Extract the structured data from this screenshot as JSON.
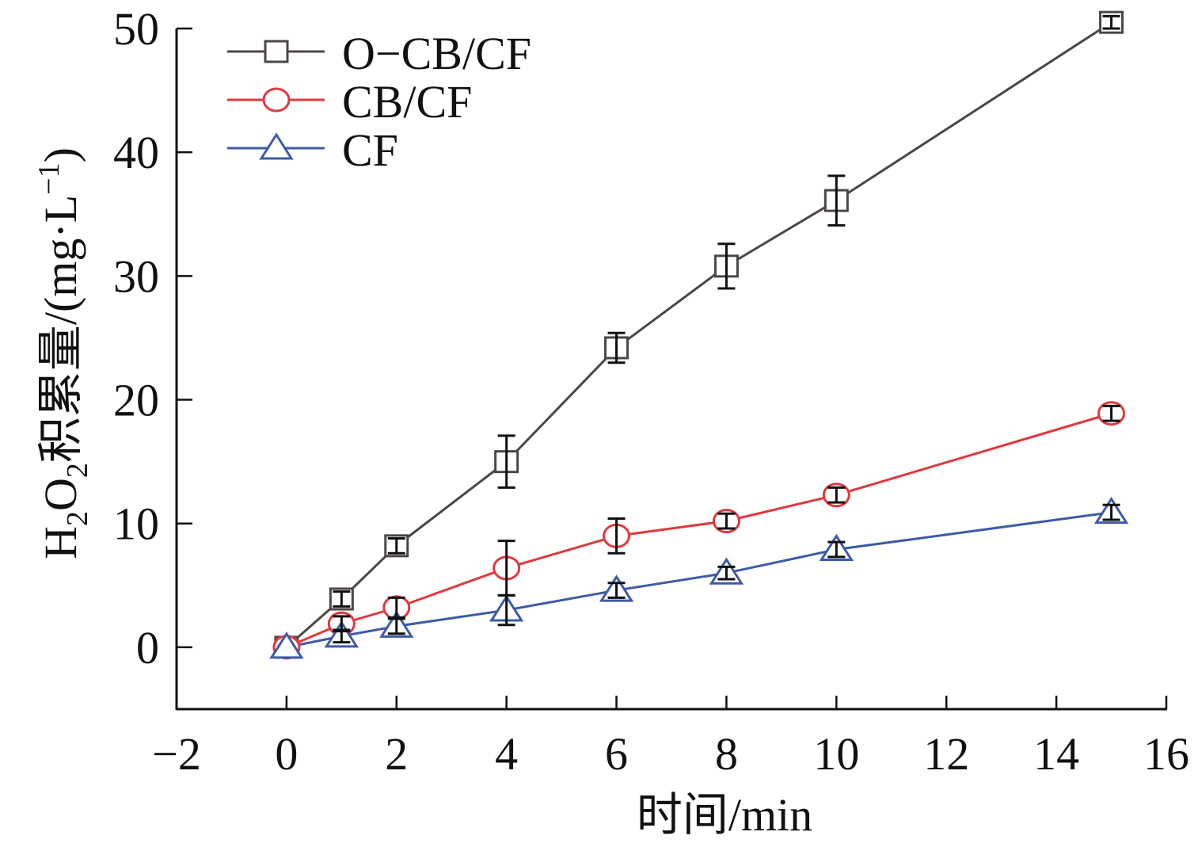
{
  "chart_data": {
    "type": "line",
    "title": "",
    "xlabel": "时间/min",
    "ylabel_parts": {
      "pre": "H",
      "sub1": "2",
      "mid": "O",
      "sub2": "2",
      "text": "积累量/(mg·L",
      "sup": "−1",
      "post": ")"
    },
    "ylabel": "H2O2积累量/(mg·L−1)",
    "xlim": [
      -2,
      16
    ],
    "ylim": [
      -5,
      50
    ],
    "xticks": [
      -2,
      0,
      2,
      4,
      6,
      8,
      10,
      12,
      14,
      16
    ],
    "xtick_labels": [
      "−2",
      "0",
      "2",
      "4",
      "6",
      "8",
      "10",
      "12",
      "14",
      "16"
    ],
    "yticks": [
      0,
      10,
      20,
      30,
      40,
      50
    ],
    "ytick_labels": [
      "0",
      "10",
      "20",
      "30",
      "40",
      "50"
    ],
    "grid": false,
    "legend_position": "top-left",
    "x": [
      0,
      1,
      2,
      4,
      6,
      8,
      10,
      15
    ],
    "series": [
      {
        "name": "O−CB/CF",
        "marker": "square",
        "color": "#4d4646",
        "values": [
          0,
          3.9,
          8.2,
          15.0,
          24.2,
          30.8,
          36.1,
          50.5
        ],
        "errors": [
          0.3,
          0.6,
          0.6,
          2.1,
          1.2,
          1.8,
          2.0,
          0.5
        ]
      },
      {
        "name": "CB/CF",
        "marker": "circle",
        "color": "#e0393e",
        "values": [
          0,
          1.9,
          3.2,
          6.4,
          9.0,
          10.2,
          12.3,
          18.9
        ],
        "errors": [
          0.3,
          0.6,
          0.8,
          2.2,
          1.4,
          0.6,
          0.6,
          0.6
        ]
      },
      {
        "name": "CF",
        "marker": "triangle",
        "color": "#3e5ba6",
        "values": [
          0,
          0.9,
          1.7,
          3.0,
          4.6,
          6.0,
          7.9,
          10.9
        ],
        "errors": [
          0.3,
          0.5,
          0.6,
          1.2,
          0.6,
          0.5,
          0.6,
          0.6
        ]
      }
    ],
    "errorbar_color": "#111111"
  }
}
